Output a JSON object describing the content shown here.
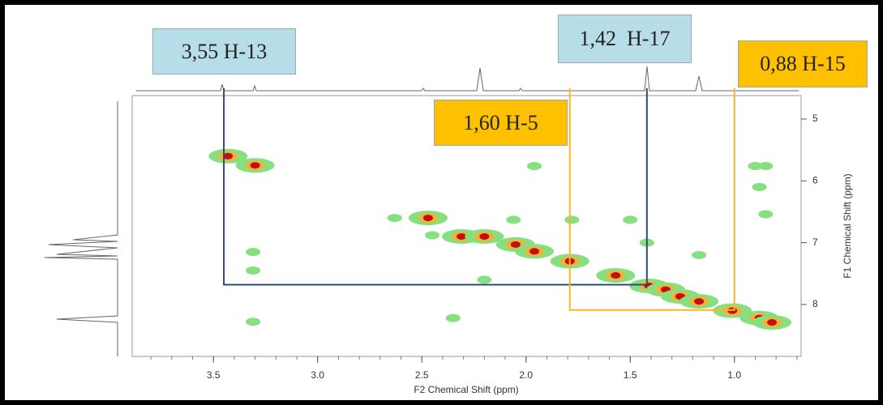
{
  "chart_data": {
    "type": "contour",
    "xlabel": "F2 Chemical Shift (ppm)",
    "ylabel": "F1 Chemical Shift (ppm)",
    "xlim": [
      3.89,
      0.68
    ],
    "ylim": [
      4.62,
      8.84
    ],
    "xticks": [
      3.5,
      {
        "value": 3,
        "label": "3.0"
      },
      2.5,
      {
        "value": 2,
        "label": "2.0"
      },
      1.5,
      {
        "value": 1,
        "label": "1.0"
      }
    ],
    "yticks": [
      5,
      6,
      7,
      8
    ],
    "peaks": {
      "x": [
        3.43,
        3.3,
        2.47,
        2.31,
        2.2,
        2.05,
        1.96,
        1.79,
        1.57,
        1.41,
        1.33,
        1.26,
        1.17,
        1.01,
        0.88,
        0.82
      ],
      "y": [
        5.6,
        5.75,
        6.6,
        6.9,
        6.9,
        7.03,
        7.14,
        7.3,
        7.53,
        7.7,
        7.76,
        7.87,
        7.95,
        8.1,
        8.22,
        8.29
      ]
    },
    "weak_peaks": {
      "x": [
        3.31,
        3.31,
        3.31,
        2.63,
        2.45,
        2.35,
        2.06,
        1.78,
        1.5,
        1.42,
        0.9,
        0.85,
        0.85,
        1.96,
        0.88,
        2.2,
        1.17
      ],
      "y": [
        8.28,
        7.45,
        7.15,
        6.6,
        6.88,
        8.22,
        6.63,
        6.63,
        6.63,
        7.0,
        5.76,
        5.76,
        6.54,
        5.76,
        6.1,
        7.6,
        7.2
      ]
    },
    "annotations": [
      {
        "text": "3,55 H-13",
        "color": "#b7dde8"
      },
      {
        "text": "1,42  H-17",
        "color": "#b7dde8"
      },
      {
        "text": "0,88 H-15",
        "color": "#ffc000"
      },
      {
        "text": "1,60 H-5",
        "color": "#ffc000"
      }
    ],
    "guides": [
      {
        "color": "#2e4a7d",
        "x": [
          3.45,
          3.45,
          1.42,
          1.42
        ],
        "y": [
          4.5,
          7.68,
          7.68,
          4.5
        ]
      },
      {
        "color": "#f5b72a",
        "x": [
          1.79,
          1.79,
          1.0,
          1.0
        ],
        "y": [
          4.5,
          8.09,
          8.09,
          4.5
        ]
      }
    ]
  }
}
